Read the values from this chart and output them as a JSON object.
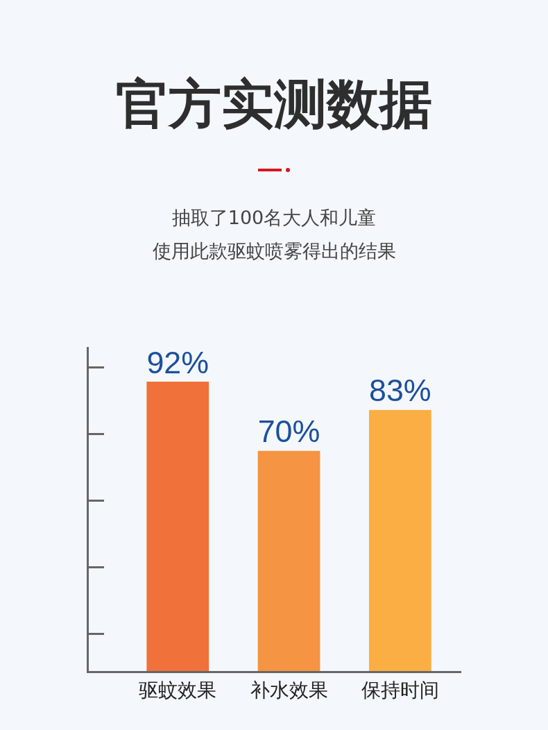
{
  "chart_data": {
    "type": "bar",
    "title": "官方实测数据",
    "subtitle": "抽取了100名大人和儿童",
    "annotations": [
      "使用此款驱蚊喷雾得出的结果"
    ],
    "categories": [
      "驱蚊效果",
      "补水效果",
      "保持时间"
    ],
    "values": [
      92,
      70,
      83
    ],
    "value_labels": [
      "92%",
      "70%",
      "83%"
    ],
    "colors": [
      "#f0713a",
      "#f59442",
      "#fbae43"
    ]
  }
}
